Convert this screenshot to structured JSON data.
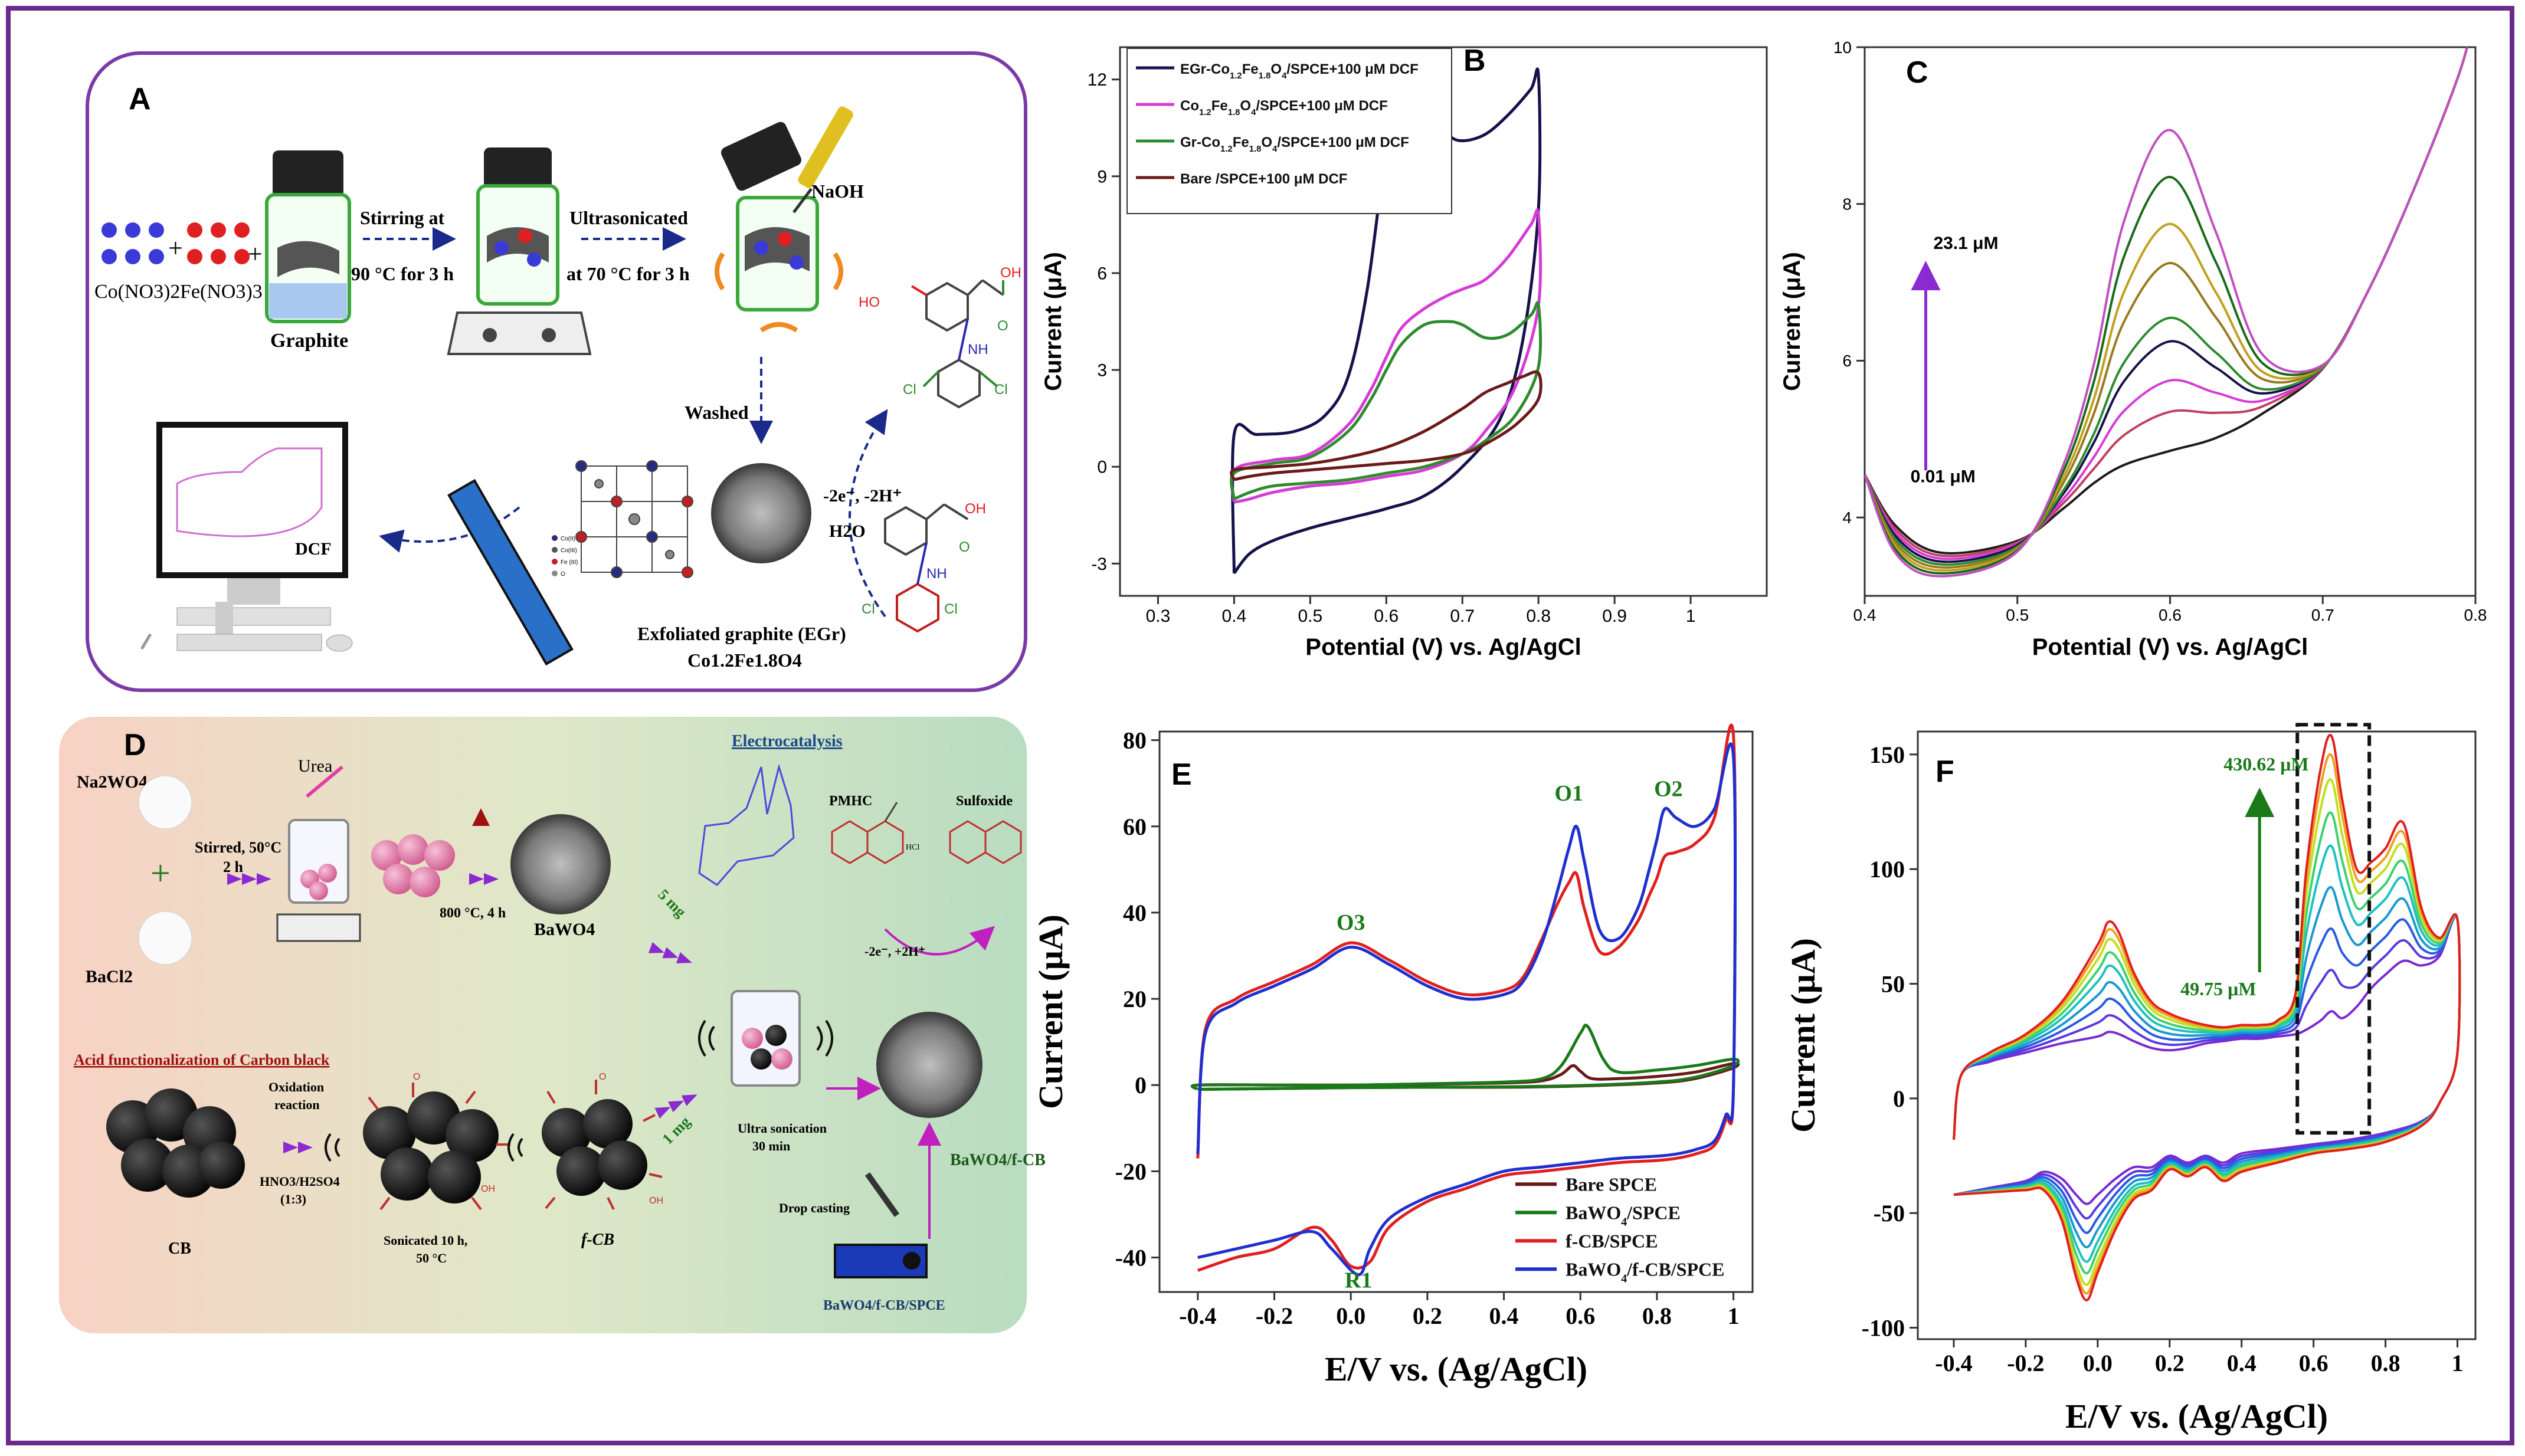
{
  "colors": {
    "frame": "#6a2a8c",
    "navy": "#14124a",
    "magenta": "#d63bd6",
    "green": "#2e8b2e",
    "maroon": "#6b1a1a",
    "red": "#e02020",
    "blue": "#1f2fd0",
    "darkgreen": "#1a7a1a"
  },
  "panelA": {
    "letter": "A",
    "co_nitrate": "Co(NO3)2",
    "fe_nitrate": "Fe(NO3)3",
    "graphite": "Graphite",
    "plus": "+",
    "step1_line1": "Stirring  at",
    "step1_line2": "90 °C for 3 h",
    "step2_line1": "Ultrasonicated",
    "step2_line2": "at 70 °C for 3 h",
    "naoh": "NaOH",
    "washed": "Washed",
    "dcf": "DCF",
    "reaction": "-2e⁻, -2H⁺",
    "water": "H2O",
    "oh": "OH",
    "ho": "HO",
    "o": "O",
    "nh": "NH",
    "cl": "Cl",
    "egr_line1": "Exfoliated graphite (EGr)",
    "egr_line2": "Co1.2Fe1.8O4",
    "cryst_legend": [
      "Co(II)",
      "Co(III)",
      "Fe (III)",
      "O"
    ]
  },
  "panelD": {
    "letter": "D",
    "na2wo4": "Na2WO4",
    "bacl2": "BaCl2",
    "plus": "+",
    "urea": "Urea",
    "stirred_line1": "Stirred, 50°C",
    "stirred_line2": "2 h",
    "calcine": "800 °C, 4 h",
    "bawo4": "BaWO4",
    "electrocatalysis": "Electrocatalysis",
    "pmhc": "PMHC",
    "sulfoxide": "Sulfoxide",
    "hcl": "HCl",
    "five_mg": "5 mg",
    "one_mg": "1 mg",
    "reaction": "-2e⁻, +2H⁺",
    "acid_title": "Acid functionalization of Carbon black",
    "oxidation_line1": "Oxidation",
    "oxidation_line2": "reaction",
    "acid_line1": "HNO3/H2SO4",
    "acid_line2": "(1:3)",
    "cb": "CB",
    "sonicated_line1": "Sonicated 10 h,",
    "sonicated_line2": "50 °C",
    "fcb": "f-CB",
    "ultra_line1": "Ultra sonication",
    "ultra_line2": "30 min",
    "drop": "Drop casting",
    "composite": "BaWO4/f-CB",
    "electrode": "BaWO4/f-CB/SPCE",
    "oh": "OH",
    "o": "O"
  },
  "chart_data": [
    {
      "panel": "B",
      "type": "line",
      "xlabel": "Potential (V) vs. Ag/AgCl",
      "ylabel": "Current (μA)",
      "xlim": [
        0.25,
        1.1
      ],
      "ylim": [
        -4,
        13
      ],
      "xticks": [
        0.3,
        0.4,
        0.5,
        0.6,
        0.7,
        0.8,
        0.9,
        1.0
      ],
      "yticks": [
        -3,
        0,
        3,
        6,
        9,
        12
      ],
      "legend_position": "top-left",
      "grid": false,
      "series": [
        {
          "name": "EGr-Co1.2Fe1.8O4/SPCE+100 μM DCF",
          "color": "#14124a",
          "x": [
            0.4,
            0.4,
            0.43,
            0.48,
            0.52,
            0.55,
            0.575,
            0.6,
            0.62,
            0.65,
            0.68,
            0.7,
            0.73,
            0.76,
            0.79,
            0.8,
            0.8,
            0.78,
            0.75,
            0.7,
            0.65,
            0.6,
            0.55,
            0.5,
            0.45,
            0.42,
            0.4
          ],
          "y": [
            -3.3,
            1.0,
            1.0,
            1.1,
            1.6,
            2.8,
            5.5,
            9.8,
            11.4,
            11.0,
            10.3,
            10.1,
            10.3,
            10.9,
            11.7,
            12.1,
            8.0,
            4.0,
            1.5,
            0.0,
            -0.9,
            -1.3,
            -1.6,
            -1.9,
            -2.3,
            -2.7,
            -3.3
          ]
        },
        {
          "name": "Co1.2Fe1.8O4/SPCE+100 μM DCF",
          "color": "#d63bd6",
          "x": [
            0.4,
            0.4,
            0.45,
            0.5,
            0.55,
            0.58,
            0.6,
            0.62,
            0.65,
            0.68,
            0.7,
            0.73,
            0.76,
            0.79,
            0.8,
            0.8,
            0.77,
            0.73,
            0.7,
            0.65,
            0.6,
            0.55,
            0.5,
            0.45,
            0.42,
            0.4
          ],
          "y": [
            -1.1,
            -0.1,
            0.2,
            0.4,
            1.3,
            2.4,
            3.4,
            4.3,
            4.9,
            5.3,
            5.5,
            5.8,
            6.5,
            7.5,
            7.8,
            5.0,
            2.5,
            1.1,
            0.4,
            -0.1,
            -0.3,
            -0.5,
            -0.6,
            -0.8,
            -1.0,
            -1.1
          ]
        },
        {
          "name": "Gr-Co1.2Fe1.8O4/SPCE+100 μM DCF",
          "color": "#2e8b2e",
          "x": [
            0.4,
            0.4,
            0.45,
            0.5,
            0.55,
            0.58,
            0.6,
            0.62,
            0.65,
            0.68,
            0.7,
            0.73,
            0.76,
            0.79,
            0.8,
            0.8,
            0.77,
            0.73,
            0.7,
            0.65,
            0.6,
            0.55,
            0.5,
            0.45,
            0.42,
            0.4
          ],
          "y": [
            -1.0,
            -0.2,
            0.1,
            0.3,
            1.1,
            2.1,
            3.0,
            3.8,
            4.4,
            4.5,
            4.4,
            4.0,
            4.1,
            4.7,
            5.0,
            3.1,
            1.6,
            0.8,
            0.4,
            0.0,
            -0.2,
            -0.4,
            -0.5,
            -0.6,
            -0.8,
            -1.0
          ]
        },
        {
          "name": "Bare /SPCE+100 μM DCF",
          "color": "#6b1a1a",
          "x": [
            0.4,
            0.4,
            0.45,
            0.5,
            0.55,
            0.6,
            0.65,
            0.7,
            0.73,
            0.76,
            0.78,
            0.8,
            0.8,
            0.77,
            0.73,
            0.7,
            0.65,
            0.6,
            0.55,
            0.5,
            0.45,
            0.42,
            0.4
          ],
          "y": [
            -0.4,
            -0.1,
            0.0,
            0.1,
            0.3,
            0.6,
            1.1,
            1.8,
            2.3,
            2.6,
            2.8,
            2.9,
            2.1,
            1.3,
            0.7,
            0.4,
            0.2,
            0.1,
            0.0,
            -0.1,
            -0.2,
            -0.3,
            -0.4
          ]
        }
      ]
    },
    {
      "panel": "C",
      "type": "line",
      "xlabel": "Potential (V) vs. Ag/AgCl",
      "ylabel": "Current (μA)",
      "xlim": [
        0.4,
        0.8
      ],
      "ylim": [
        3.0,
        10.0
      ],
      "xticks": [
        0.4,
        0.5,
        0.6,
        0.7,
        0.8
      ],
      "yticks": [
        4,
        6,
        8,
        10
      ],
      "annotations": {
        "high": "23.1 μM",
        "low": "0.01 μM"
      },
      "grid": false,
      "x": [
        0.4,
        0.42,
        0.45,
        0.5,
        0.53,
        0.55,
        0.57,
        0.6,
        0.63,
        0.66,
        0.7,
        0.73,
        0.76,
        0.79,
        0.8
      ],
      "peak_heights": [
        0.1,
        0.6,
        1.0,
        1.5,
        1.8,
        2.5,
        3.0,
        3.6,
        4.2
      ],
      "series": [
        {
          "color": "#1b1b1b",
          "peak": 0.1
        },
        {
          "color": "#c04060",
          "peak": 0.6
        },
        {
          "color": "#d63bd6",
          "peak": 1.0
        },
        {
          "color": "#14124a",
          "peak": 1.5
        },
        {
          "color": "#2e8b2e",
          "peak": 1.8
        },
        {
          "color": "#9a7a20",
          "peak": 2.5
        },
        {
          "color": "#c0a020",
          "peak": 3.0
        },
        {
          "color": "#1a6a1a",
          "peak": 3.6
        },
        {
          "color": "#c050c0",
          "peak": 4.2
        }
      ]
    },
    {
      "panel": "E",
      "type": "line",
      "xlabel": "E/V vs. (Ag/AgCl)",
      "ylabel": "Current (μA)",
      "xlim": [
        -0.5,
        1.05
      ],
      "ylim": [
        -48,
        82
      ],
      "xticks": [
        -0.4,
        -0.2,
        0.0,
        0.2,
        0.4,
        0.6,
        0.8,
        1.0
      ],
      "yticks": [
        -40,
        -20,
        0,
        20,
        40,
        60,
        80
      ],
      "peak_labels": [
        {
          "text": "O1",
          "x": 0.57,
          "y": 66
        },
        {
          "text": "O2",
          "x": 0.83,
          "y": 67
        },
        {
          "text": "O3",
          "x": 0.0,
          "y": 36
        },
        {
          "text": "R1",
          "x": 0.02,
          "y": -47
        }
      ],
      "legend_position": "bottom-right",
      "grid": false,
      "series": [
        {
          "name": "Bare SPCE",
          "color": "#6b1a1a",
          "x": [
            -0.4,
            -0.4,
            -0.2,
            0.0,
            0.2,
            0.4,
            0.5,
            0.55,
            0.58,
            0.6,
            0.63,
            0.7,
            0.8,
            0.9,
            1.0,
            1.0,
            0.9,
            0.8,
            0.6,
            0.4,
            0.2,
            0.0,
            -0.2,
            -0.4
          ],
          "y": [
            -1,
            0,
            0,
            0,
            0.2,
            0.5,
            1.0,
            2.5,
            4.5,
            3.2,
            1.5,
            1.5,
            2.0,
            3.0,
            5.0,
            4.0,
            1.5,
            0.5,
            -0.2,
            -0.5,
            -0.5,
            -0.6,
            -0.8,
            -1
          ]
        },
        {
          "name": "BaWO4/SPCE",
          "color": "#1a7a1a",
          "x": [
            -0.4,
            -0.4,
            -0.2,
            0.0,
            0.2,
            0.4,
            0.5,
            0.55,
            0.6,
            0.62,
            0.66,
            0.7,
            0.8,
            0.9,
            1.0,
            1.0,
            0.9,
            0.8,
            0.6,
            0.4,
            0.2,
            0.0,
            -0.2,
            -0.4
          ],
          "y": [
            -1,
            0,
            0,
            0,
            0.3,
            0.7,
            1.5,
            4.5,
            12.0,
            13.5,
            6.0,
            3.0,
            3.5,
            4.5,
            6.0,
            4.5,
            1.8,
            0.7,
            -0.1,
            -0.4,
            -0.5,
            -0.6,
            -0.8,
            -1
          ]
        },
        {
          "name": "f-CB/SPCE",
          "color": "#e02020",
          "x": [
            -0.4,
            -0.38,
            -0.3,
            -0.2,
            -0.1,
            0.0,
            0.1,
            0.2,
            0.3,
            0.4,
            0.45,
            0.5,
            0.54,
            0.57,
            0.59,
            0.61,
            0.65,
            0.7,
            0.75,
            0.78,
            0.8,
            0.82,
            0.85,
            0.9,
            0.95,
            1.0,
            1.0,
            0.98,
            0.95,
            0.9,
            0.85,
            0.8,
            0.7,
            0.6,
            0.5,
            0.4,
            0.3,
            0.2,
            0.1,
            0.05,
            0.0,
            -0.05,
            -0.1,
            -0.2,
            -0.3,
            -0.4
          ],
          "y": [
            -17,
            13,
            20,
            24,
            28,
            33,
            29,
            24,
            21,
            22,
            25,
            34,
            42,
            47,
            49,
            41,
            31,
            32,
            38,
            44,
            48,
            53,
            54,
            56,
            62,
            81,
            -0.5,
            -8,
            -14,
            -16,
            -17,
            -17.5,
            -18,
            -19,
            -20,
            -21,
            -24,
            -27,
            -33,
            -41,
            -42,
            -36,
            -33,
            -38,
            -40,
            -43
          ]
        },
        {
          "name": "BaWO4/f-CB/SPCE",
          "color": "#1f2fd0",
          "x": [
            -0.4,
            -0.38,
            -0.3,
            -0.2,
            -0.1,
            0.0,
            0.1,
            0.2,
            0.3,
            0.4,
            0.45,
            0.5,
            0.54,
            0.57,
            0.59,
            0.61,
            0.65,
            0.7,
            0.75,
            0.78,
            0.8,
            0.82,
            0.85,
            0.9,
            0.95,
            1.0,
            1.0,
            0.98,
            0.95,
            0.9,
            0.85,
            0.8,
            0.7,
            0.6,
            0.5,
            0.4,
            0.3,
            0.2,
            0.1,
            0.05,
            0.02,
            -0.05,
            -0.1,
            -0.2,
            -0.3,
            -0.4
          ],
          "y": [
            -16,
            12,
            19,
            23,
            27,
            32,
            28,
            23,
            20,
            21,
            24,
            33,
            45,
            55,
            60,
            52,
            36,
            34,
            41,
            50,
            57,
            64,
            62,
            60,
            64,
            76,
            -0.5,
            -7,
            -13,
            -15,
            -16,
            -16.5,
            -17,
            -18,
            -19,
            -20,
            -23,
            -26,
            -31,
            -38,
            -44,
            -38,
            -34,
            -36,
            -38,
            -40
          ]
        }
      ]
    },
    {
      "panel": "F",
      "type": "line",
      "xlabel": "E/V vs. (Ag/AgCl)",
      "ylabel": "Current (μA)",
      "xlim": [
        -0.5,
        1.05
      ],
      "ylim": [
        -105,
        160
      ],
      "xticks": [
        -0.4,
        -0.2,
        0.0,
        0.2,
        0.4,
        0.6,
        0.8,
        1.0
      ],
      "yticks": [
        -100,
        -50,
        0,
        50,
        100,
        150
      ],
      "annotations": {
        "high": "430.62 μM",
        "low": "49.75 μM"
      },
      "grid": false,
      "series": [
        {
          "color": "#7a2ad0",
          "scale": 0.0
        },
        {
          "color": "#5a3ae0",
          "scale": 0.15
        },
        {
          "color": "#2a5ae0",
          "scale": 0.3
        },
        {
          "color": "#1a9ad0",
          "scale": 0.45
        },
        {
          "color": "#20c0c0",
          "scale": 0.6
        },
        {
          "color": "#40d070",
          "scale": 0.72
        },
        {
          "color": "#c0e020",
          "scale": 0.84
        },
        {
          "color": "#f0a020",
          "scale": 0.93
        },
        {
          "color": "#e02020",
          "scale": 1.0
        }
      ]
    }
  ]
}
